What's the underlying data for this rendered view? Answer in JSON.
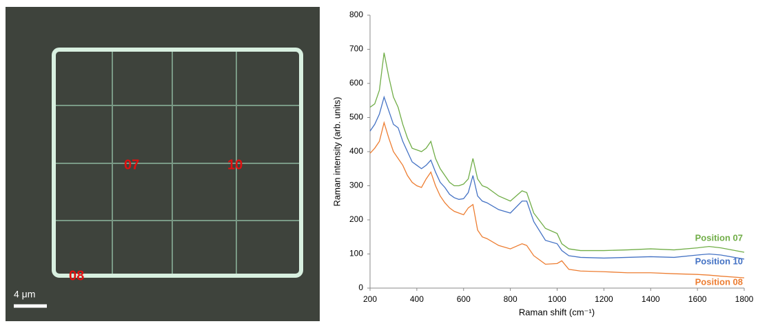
{
  "image": {
    "labels": [
      "07",
      "10",
      "08"
    ],
    "scale_bar": "4 μm"
  },
  "chart_data": {
    "type": "line",
    "xlabel": "Raman shift (cm⁻¹)",
    "ylabel": "Raman intensity (arb. units)",
    "x": [
      200,
      220,
      240,
      260,
      280,
      300,
      320,
      340,
      360,
      380,
      400,
      420,
      440,
      460,
      480,
      500,
      520,
      540,
      560,
      580,
      600,
      620,
      640,
      660,
      680,
      700,
      750,
      800,
      850,
      870,
      900,
      950,
      1000,
      1020,
      1050,
      1100,
      1200,
      1300,
      1400,
      1500,
      1600,
      1650,
      1700,
      1800
    ],
    "series": [
      {
        "name": "Position 07",
        "color": "#70ad47",
        "values": [
          530,
          540,
          580,
          690,
          620,
          560,
          530,
          480,
          440,
          410,
          405,
          400,
          410,
          430,
          380,
          350,
          330,
          310,
          300,
          300,
          305,
          320,
          380,
          320,
          300,
          295,
          270,
          255,
          285,
          280,
          220,
          175,
          160,
          130,
          115,
          110,
          110,
          112,
          115,
          112,
          118,
          122,
          118,
          105
        ]
      },
      {
        "name": "Position 10",
        "color": "#4472c4",
        "values": [
          460,
          480,
          510,
          560,
          520,
          480,
          470,
          430,
          400,
          370,
          360,
          350,
          360,
          375,
          340,
          310,
          295,
          275,
          265,
          260,
          262,
          280,
          330,
          270,
          255,
          250,
          230,
          220,
          255,
          255,
          195,
          140,
          130,
          110,
          95,
          90,
          88,
          90,
          92,
          90,
          97,
          100,
          97,
          85
        ]
      },
      {
        "name": "Position 08",
        "color": "#ed7d31",
        "values": [
          395,
          410,
          430,
          485,
          440,
          400,
          380,
          360,
          330,
          310,
          300,
          295,
          320,
          340,
          300,
          270,
          250,
          235,
          225,
          220,
          215,
          235,
          245,
          170,
          150,
          145,
          125,
          115,
          130,
          125,
          95,
          70,
          72,
          80,
          55,
          50,
          48,
          45,
          45,
          42,
          40,
          38,
          35,
          30
        ]
      }
    ],
    "xlim": [
      200,
      1800
    ],
    "xticks": [
      200,
      400,
      600,
      800,
      1000,
      1200,
      1400,
      1600,
      1800
    ],
    "ylim": [
      0,
      800
    ],
    "yticks": [
      0,
      100,
      200,
      300,
      400,
      500,
      600,
      700,
      800
    ],
    "grid": false
  }
}
